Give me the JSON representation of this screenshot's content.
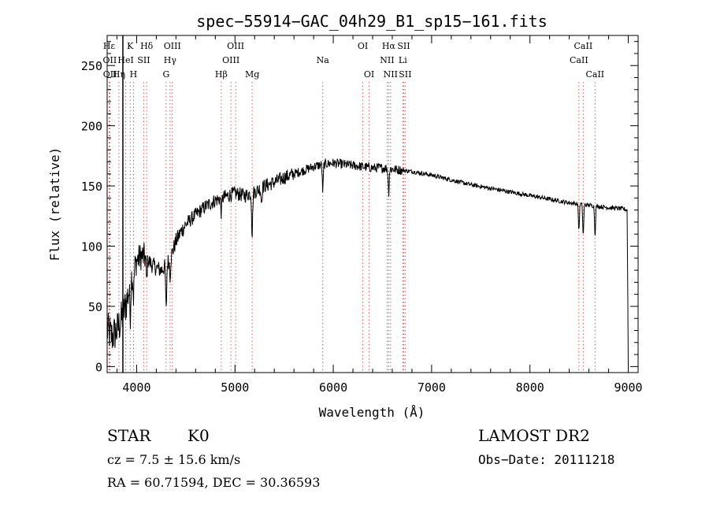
{
  "chart_data": {
    "type": "line",
    "title": "spec−55914−GAC_04h29_B1_sp15−161.fits",
    "xlabel": "Wavelength (Å)",
    "ylabel": "Flux (relative)",
    "xlim": [
      3700,
      9100
    ],
    "ylim": [
      -5,
      275
    ],
    "x_ticks": [
      4000,
      5000,
      6000,
      7000,
      8000,
      9000
    ],
    "y_ticks": [
      0,
      50,
      100,
      150,
      200,
      250
    ],
    "x_tick_labels": [
      "4000",
      "5000",
      "6000",
      "7000",
      "8000",
      "9000"
    ],
    "y_tick_labels": [
      "0",
      "50",
      "100",
      "150",
      "200",
      "250"
    ],
    "grid": false,
    "line_color": "#000000",
    "spectrum_anchors": {
      "x": [
        3700,
        3750,
        3800,
        3850,
        3900,
        3950,
        4000,
        4050,
        4100,
        4150,
        4200,
        4250,
        4300,
        4350,
        4400,
        4450,
        4500,
        4600,
        4700,
        4800,
        4900,
        5000,
        5100,
        5200,
        5300,
        5400,
        5500,
        5600,
        5700,
        5800,
        5900,
        6000,
        6100,
        6200,
        6300,
        6400,
        6500,
        6600,
        6700,
        6800,
        7000,
        7200,
        7400,
        7600,
        7800,
        8000,
        8200,
        8400,
        8600,
        8800,
        8950,
        8990
      ],
      "y": [
        30,
        25,
        30,
        40,
        55,
        75,
        88,
        92,
        90,
        85,
        82,
        80,
        84,
        92,
        104,
        112,
        118,
        126,
        133,
        138,
        141,
        144,
        142,
        145,
        150,
        153,
        157,
        160,
        163,
        166,
        168,
        169,
        168,
        167,
        166,
        165,
        165,
        164,
        163,
        162,
        159,
        155,
        151,
        148,
        145,
        142,
        139,
        136,
        134,
        132,
        131,
        130
      ]
    },
    "absorption_features": [
      {
        "x": 3934,
        "depth": 25
      },
      {
        "x": 3968,
        "depth": 22
      },
      {
        "x": 4102,
        "depth": 18
      },
      {
        "x": 4300,
        "depth": 38
      },
      {
        "x": 4340,
        "depth": 15
      },
      {
        "x": 4861,
        "depth": 12
      },
      {
        "x": 5175,
        "depth": 35
      },
      {
        "x": 5270,
        "depth": 12
      },
      {
        "x": 5893,
        "depth": 22
      },
      {
        "x": 6563,
        "depth": 20
      },
      {
        "x": 8498,
        "depth": 22
      },
      {
        "x": 8542,
        "depth": 26
      },
      {
        "x": 8662,
        "depth": 24
      }
    ],
    "vertical_marker": {
      "x": 3860,
      "color": "#000000"
    },
    "line_markers": [
      {
        "x": 3720,
        "label": "Hε",
        "row": 0
      },
      {
        "x": 3727,
        "label": "OII",
        "row": 1
      },
      {
        "x": 3729,
        "label": "OII",
        "row": 2
      },
      {
        "x": 3820,
        "label": "Hη",
        "row": 2
      },
      {
        "x": 3889,
        "label": "HeI",
        "row": 1
      },
      {
        "x": 3934,
        "label": "K",
        "row": 0
      },
      {
        "x": 3968,
        "label": "H",
        "row": 2
      },
      {
        "x": 4072,
        "label": "SII",
        "row": 1
      },
      {
        "x": 4102,
        "label": "Hδ",
        "row": 0
      },
      {
        "x": 4300,
        "label": "G",
        "row": 2
      },
      {
        "x": 4340,
        "label": "Hγ",
        "row": 1
      },
      {
        "x": 4363,
        "label": "OIII",
        "row": 0
      },
      {
        "x": 4861,
        "label": "Hβ",
        "row": 2
      },
      {
        "x": 4959,
        "label": "OIII",
        "row": 1
      },
      {
        "x": 5007,
        "label": "OIII",
        "row": 0
      },
      {
        "x": 5175,
        "label": "Mg",
        "row": 2
      },
      {
        "x": 5893,
        "label": "Na",
        "row": 1
      },
      {
        "x": 6300,
        "label": "OI",
        "row": 0
      },
      {
        "x": 6364,
        "label": "OI",
        "row": 2
      },
      {
        "x": 6548,
        "label": "NII",
        "row": 1
      },
      {
        "x": 6563,
        "label": "Hα",
        "row": 0
      },
      {
        "x": 6583,
        "label": "NII",
        "row": 2
      },
      {
        "x": 6707,
        "label": "Li",
        "row": 1
      },
      {
        "x": 6716,
        "label": "SII",
        "row": 0
      },
      {
        "x": 6731,
        "label": "SII",
        "row": 2
      },
      {
        "x": 8498,
        "label": "CaII",
        "row": 1
      },
      {
        "x": 8542,
        "label": "CaII",
        "row": 0
      },
      {
        "x": 8662,
        "label": "CaII",
        "row": 2
      }
    ]
  },
  "footer": {
    "object_class": "STAR",
    "subclass": "K0",
    "survey": "LAMOST DR2",
    "redshift": "cz = 7.5 ± 15.6 km/s",
    "obs_date": "Obs−Date: 20111218",
    "coords": "RA =  60.71594, DEC =  30.36593"
  }
}
